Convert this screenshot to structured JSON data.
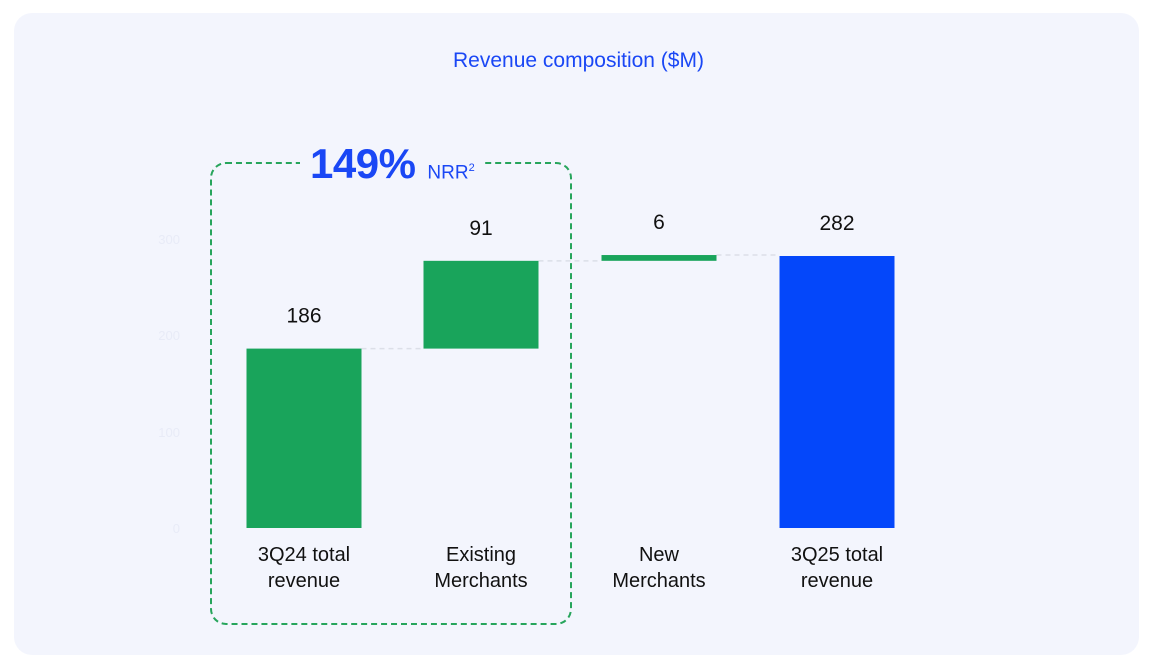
{
  "chart_data": {
    "type": "bar",
    "subtype": "waterfall",
    "title": "Revenue composition ($M)",
    "categories": [
      "3Q24 total revenue",
      "Existing Merchants",
      "New Merchants",
      "3Q25 total revenue"
    ],
    "category_lines": [
      [
        "3Q24 total",
        "revenue"
      ],
      [
        "Existing",
        "Merchants"
      ],
      [
        "New",
        "Merchants"
      ],
      [
        "3Q25 total",
        "revenue"
      ]
    ],
    "values": [
      186,
      91,
      6,
      282
    ],
    "bar_kinds": [
      "total",
      "increase",
      "increase",
      "total"
    ],
    "ylim": [
      0,
      300
    ],
    "yticks": [
      0,
      100,
      200,
      300
    ],
    "ytick_labels": [
      "0",
      "100",
      "200",
      "300"
    ],
    "grid": false,
    "colors": {
      "green": "#19a45b",
      "blue": "#0447fa",
      "connector": "#dcdfe8"
    }
  },
  "annotation": {
    "percent": "149%",
    "label": "NRR",
    "footnote": "2"
  }
}
